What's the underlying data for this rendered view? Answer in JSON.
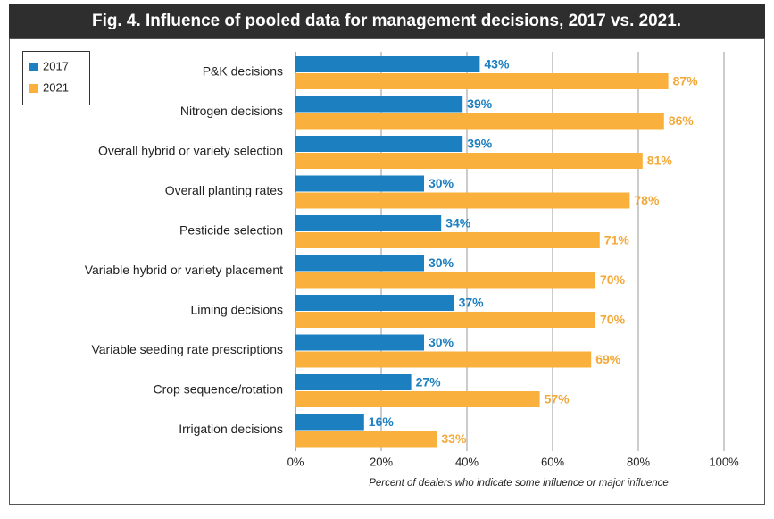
{
  "chart_data": {
    "type": "hbar",
    "title": "Fig. 4.  Influence of pooled data for management decisions, 2017 vs. 2021.",
    "x_label": "Percent of dealers who indicate some influence or major influence",
    "categories": [
      "P&K decisions",
      "Nitrogen decisions",
      "Overall hybrid or variety selection",
      "Overall planting rates",
      "Pesticide selection",
      "Variable hybrid or variety placement",
      "Liming decisions",
      "Variable seeding rate prescriptions",
      "Crop sequence/rotation",
      "Irrigation decisions"
    ],
    "series": [
      {
        "name": "2017",
        "color": "#1b7fc0",
        "label_color": "#1b7fc0",
        "values": [
          43,
          39,
          39,
          30,
          34,
          30,
          37,
          30,
          27,
          16
        ],
        "value_labels": [
          "43%",
          "39%",
          "39%",
          "30%",
          "34%",
          "30%",
          "37%",
          "30%",
          "27%",
          "16%"
        ]
      },
      {
        "name": "2021",
        "color": "#f9b03c",
        "label_color": "#f3a93a",
        "values": [
          87,
          86,
          81,
          78,
          71,
          70,
          70,
          69,
          57,
          33
        ],
        "value_labels": [
          "87%",
          "86%",
          "81%",
          "78%",
          "71%",
          "70%",
          "70%",
          "69%",
          "57%",
          "33%"
        ]
      }
    ],
    "xlim": [
      0,
      100
    ],
    "xticks": [
      {
        "value": 0,
        "label": "0%"
      },
      {
        "value": 20,
        "label": "20%"
      },
      {
        "value": 40,
        "label": "40%"
      },
      {
        "value": 60,
        "label": "60%"
      },
      {
        "value": 80,
        "label": "80%"
      },
      {
        "value": 100,
        "label": "100%"
      }
    ],
    "grid": true,
    "legend": "upper left"
  }
}
